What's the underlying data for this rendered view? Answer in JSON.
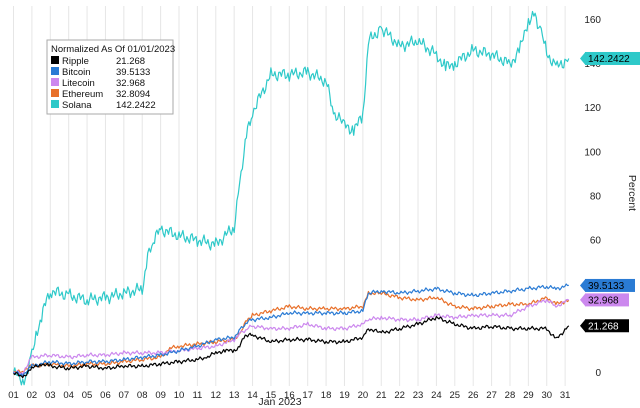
{
  "chart_data": {
    "type": "line",
    "title": "",
    "xlabel": "Jan 2023",
    "ylabel": "Percent",
    "xlim": [
      0.7,
      31.7
    ],
    "ylim": [
      -6,
      166
    ],
    "yticks": [
      0,
      20,
      40,
      60,
      80,
      100,
      120,
      140,
      160
    ],
    "xticks": [
      "01",
      "02",
      "03",
      "04",
      "05",
      "06",
      "07",
      "08",
      "09",
      "10",
      "11",
      "12",
      "13",
      "14",
      "15",
      "16",
      "17",
      "18",
      "19",
      "20",
      "21",
      "22",
      "23",
      "24",
      "25",
      "26",
      "27",
      "28",
      "29",
      "30",
      "31"
    ],
    "grid": "vertical",
    "legend": {
      "title": "Normalized As Of 01/01/2023",
      "placement": "top-left"
    },
    "series": [
      {
        "name": "Ripple",
        "label": "21.268",
        "color": "#000000",
        "label_text_color": "#ffffff",
        "x": [
          1,
          1.5,
          2,
          2.5,
          3,
          4,
          5,
          6,
          7,
          8,
          9,
          10,
          11,
          11.5,
          12,
          12.5,
          13,
          13.3,
          13.6,
          14,
          15,
          16,
          17,
          18,
          19,
          20,
          20.3,
          21,
          22,
          23,
          24,
          25,
          26,
          27,
          28,
          29,
          30,
          30.5,
          31.2
        ],
        "y": [
          0,
          -2,
          2,
          4,
          3,
          2,
          3,
          2,
          3,
          3,
          4,
          5,
          6,
          7,
          9,
          10,
          10,
          12,
          17,
          17,
          14,
          15,
          15,
          14,
          14,
          16,
          20,
          18,
          20,
          22,
          25,
          22,
          20,
          21,
          20,
          20,
          20,
          15,
          21.268
        ]
      },
      {
        "name": "Bitcoin",
        "label": "39.5133",
        "color": "#2a7bd4",
        "label_text_color": "#000000",
        "x": [
          1,
          1.5,
          2,
          3,
          4,
          5,
          6,
          7,
          8,
          9,
          10,
          11,
          12,
          13,
          13.4,
          13.7,
          14,
          15,
          16,
          17,
          18,
          19,
          20,
          20.3,
          21,
          22,
          23,
          24,
          25,
          26,
          27,
          28,
          29,
          30,
          30.5,
          31.2
        ],
        "y": [
          0,
          -1,
          3,
          5,
          4,
          5,
          5,
          6,
          7,
          8,
          10,
          12,
          15,
          16,
          20,
          23,
          24,
          25,
          27,
          27,
          27,
          27,
          28,
          36,
          37,
          36,
          37,
          38,
          36,
          35,
          36,
          37,
          38,
          39,
          38,
          39.5133
        ]
      },
      {
        "name": "Litecoin",
        "label": "32.968",
        "color": "#cc88ee",
        "label_text_color": "#000000",
        "x": [
          1,
          1.5,
          2,
          3,
          4,
          5,
          6,
          7,
          8,
          9,
          10,
          11,
          12,
          13,
          13.4,
          13.7,
          14,
          15,
          16,
          17,
          18,
          19,
          20,
          20.3,
          21,
          22,
          23,
          24,
          25,
          26,
          27,
          28,
          29,
          30,
          30.5,
          31.2
        ],
        "y": [
          0,
          0,
          7,
          8,
          7,
          8,
          8,
          9,
          9,
          9,
          10,
          11,
          12,
          15,
          18,
          20,
          21,
          20,
          20,
          22,
          20,
          20,
          22,
          24,
          25,
          24,
          24,
          26,
          25,
          26,
          26,
          26,
          30,
          33,
          30,
          32.968
        ]
      },
      {
        "name": "Ethereum",
        "label": "32.8094",
        "color": "#e8702a",
        "label_text_color": "#000000",
        "x": [
          1,
          1.5,
          2,
          3,
          4,
          5,
          6,
          7,
          8,
          9,
          9.5,
          10,
          11,
          12,
          13,
          13.4,
          13.7,
          14,
          15,
          16,
          17,
          18,
          19,
          20,
          20.3,
          21,
          22,
          23,
          24,
          25,
          26,
          27,
          28,
          29,
          30,
          30.5,
          31.2
        ],
        "y": [
          0,
          1,
          3,
          4,
          3,
          4,
          4,
          5,
          6,
          7,
          11,
          12,
          13,
          14,
          15,
          19,
          24,
          26,
          28,
          30,
          29,
          29,
          29,
          30,
          36,
          36,
          34,
          33,
          34,
          30,
          29,
          30,
          31,
          31,
          34,
          31,
          32.8094
        ]
      },
      {
        "name": "Solana",
        "label": "142.2422",
        "color": "#2ec9c9",
        "label_text_color": "#000000",
        "x": [
          1,
          1.5,
          1.8,
          2,
          2.3,
          2.6,
          3,
          4,
          5,
          6,
          7,
          8,
          8.3,
          8.6,
          9,
          10,
          11,
          12,
          13,
          13.3,
          13.6,
          14,
          15,
          16,
          17,
          18,
          18.4,
          19,
          19.5,
          20,
          20.3,
          21,
          22,
          23,
          24,
          24.5,
          25,
          26,
          27,
          28,
          28.5,
          29,
          29.3,
          29.7,
          30,
          30.5,
          31.2
        ],
        "y": [
          0,
          -3,
          0,
          10,
          18,
          28,
          37,
          35,
          33,
          34,
          36,
          38,
          52,
          60,
          65,
          62,
          60,
          58,
          66,
          85,
          105,
          118,
          135,
          135,
          136,
          132,
          118,
          112,
          110,
          116,
          150,
          156,
          148,
          150,
          144,
          138,
          140,
          146,
          144,
          140,
          145,
          160,
          162,
          155,
          145,
          138,
          142.2422
        ]
      }
    ]
  }
}
